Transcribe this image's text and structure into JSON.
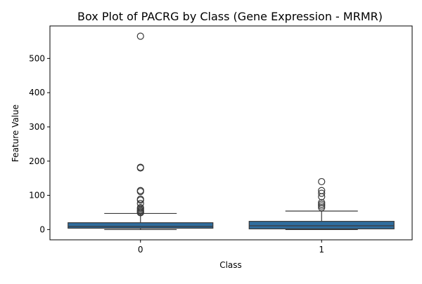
{
  "chart_data": {
    "type": "box",
    "title": "Box Plot of PACRG by Class (Gene Expression - MRMR)",
    "xlabel": "Class",
    "ylabel": "Feature Value",
    "categories": [
      "0",
      "1"
    ],
    "yticks": [
      0,
      100,
      200,
      300,
      400,
      500
    ],
    "ylim": [
      -30,
      595
    ],
    "grid": false,
    "box_color": "#2f6d9e",
    "boxes": [
      {
        "category": "0",
        "whisker_low": 0,
        "q1": 4,
        "median": 9,
        "q3": 20,
        "whisker_high": 47,
        "outliers": [
          565,
          182,
          180,
          114,
          111,
          89,
          86,
          76,
          64,
          61,
          57,
          54,
          51,
          49
        ]
      },
      {
        "category": "1",
        "whisker_low": 0,
        "q1": 2,
        "median": 11,
        "q3": 24,
        "whisker_high": 54,
        "outliers": [
          140,
          114,
          106,
          96,
          79,
          74,
          69,
          64
        ]
      }
    ]
  }
}
